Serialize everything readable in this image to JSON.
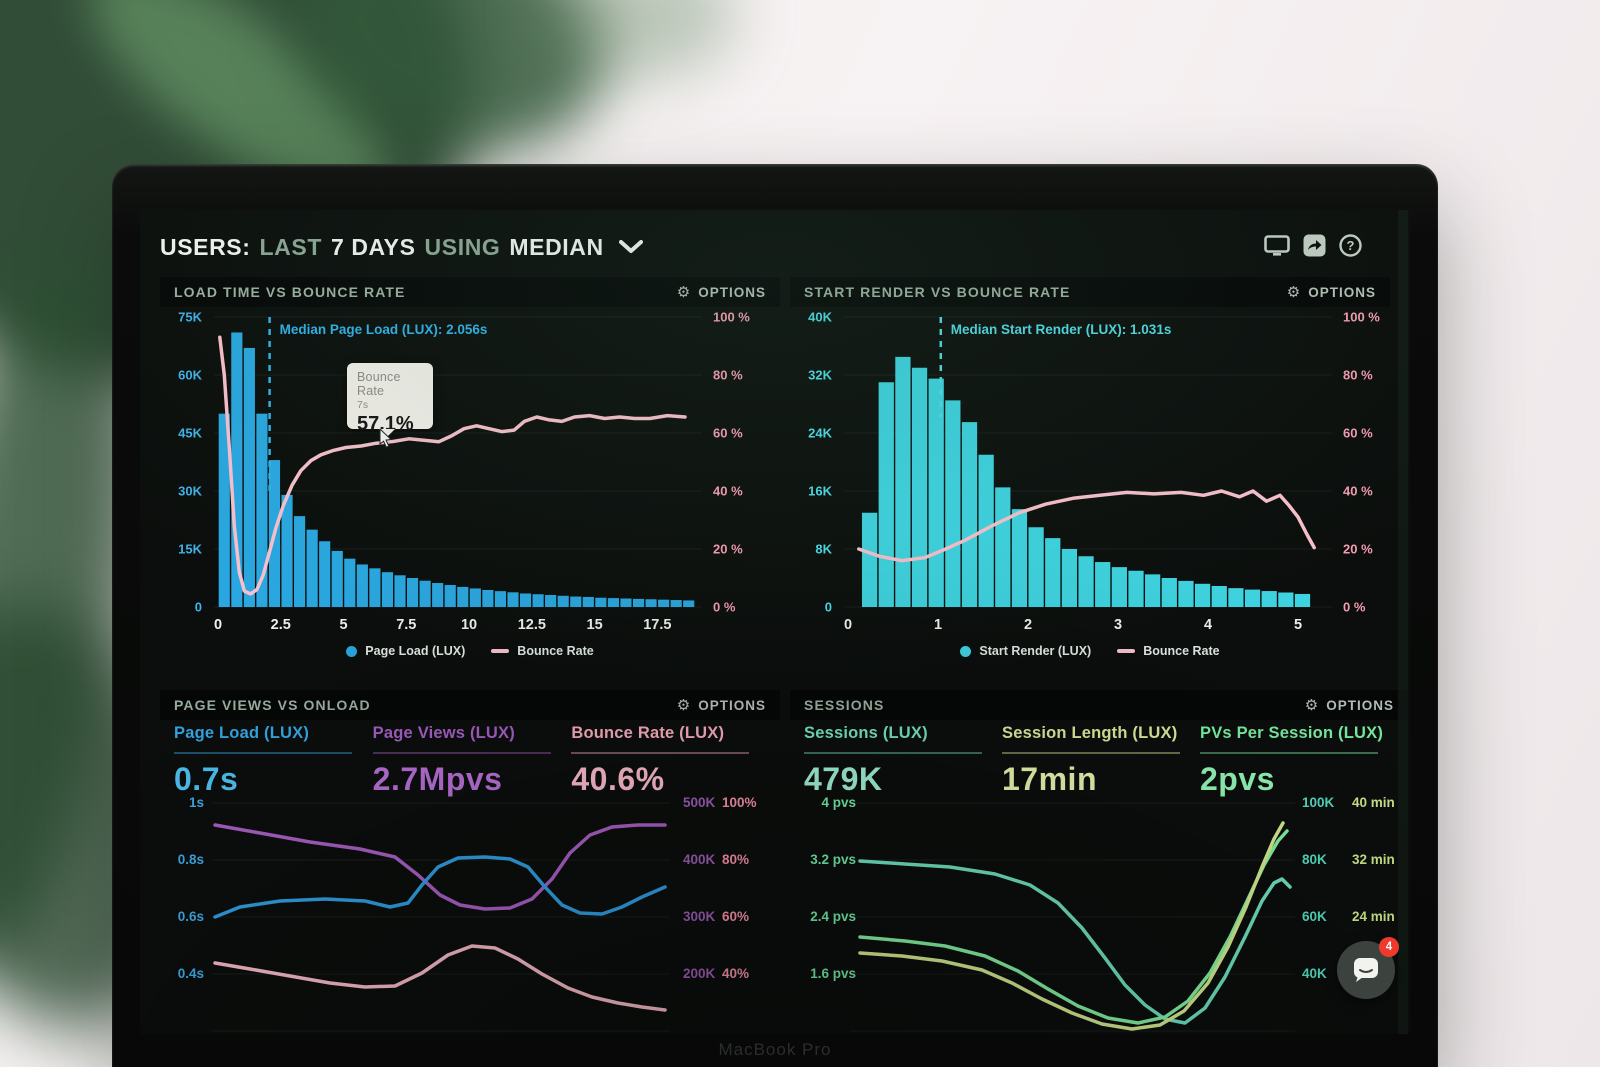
{
  "ui": {
    "header": {
      "users": "USERS:",
      "last": "LAST",
      "days": "7 DAYS",
      "using": "USING",
      "median": "MEDIAN"
    },
    "options_label": "OPTIONS",
    "chat_badge": "4",
    "device_label": "MacBook Pro",
    "colors": {
      "accent_blue": "#2fa9e1",
      "accent_cyan": "#47d8e3",
      "accent_pink": "#f6b9c5",
      "accent_purple": "#a963c6",
      "accent_teal": "#7ee8c6",
      "accent_yellowgreen": "#dff0a0",
      "accent_green": "#84f2a3",
      "sage": "#9cb0a2",
      "badge_red": "#ee392c"
    }
  },
  "chart_data": [
    {
      "type": "bar+line",
      "title": "LOAD TIME VS BOUNCE RATE",
      "x_range": [
        0,
        19
      ],
      "x_ticks": [
        0,
        2.5,
        5,
        7.5,
        10,
        12.5,
        15,
        17.5
      ],
      "y_left_ticks": [
        "75K",
        "60K",
        "45K",
        "30K",
        "15K",
        "0"
      ],
      "y_left_max_k": 75,
      "y_right_ticks": [
        "100 %",
        "80 %",
        "60 %",
        "40 %",
        "20 %",
        "0 %"
      ],
      "bar_series": "Page Load (LUX)",
      "line_series": "Bounce Rate",
      "bar_color": "#2aa7e0",
      "line_color": "#f8c0cc",
      "left_axis_color": "#3fb3e8",
      "right_axis_color": "#f59cb2",
      "bars": {
        "start_s": 0.25,
        "step_s": 0.5,
        "values_k": [
          50,
          71,
          67,
          50,
          38,
          29,
          23.5,
          20,
          17,
          14.5,
          12.5,
          11,
          10,
          9,
          8.2,
          7.5,
          6.8,
          6.2,
          5.7,
          5.2,
          4.8,
          4.4,
          4.1,
          3.8,
          3.5,
          3.3,
          3.1,
          2.9,
          2.7,
          2.6,
          2.4,
          2.3,
          2.2,
          2.1,
          2.0,
          1.9,
          1.8,
          1.7
        ]
      },
      "bounce_line_pct": [
        [
          0.07,
          93
        ],
        [
          0.25,
          80
        ],
        [
          0.45,
          55
        ],
        [
          0.65,
          28
        ],
        [
          0.85,
          12
        ],
        [
          1.05,
          5.5
        ],
        [
          1.3,
          4.5
        ],
        [
          1.55,
          6
        ],
        [
          1.8,
          11
        ],
        [
          2.05,
          19
        ],
        [
          2.3,
          27
        ],
        [
          2.6,
          35
        ],
        [
          2.95,
          42
        ],
        [
          3.3,
          47
        ],
        [
          3.7,
          50.5
        ],
        [
          4.1,
          52.5
        ],
        [
          4.6,
          54
        ],
        [
          5.1,
          55
        ],
        [
          5.7,
          55.5
        ],
        [
          6.3,
          56.5
        ],
        [
          7,
          57.1
        ],
        [
          7.6,
          58
        ],
        [
          8.2,
          57.5
        ],
        [
          8.8,
          57
        ],
        [
          9.3,
          59
        ],
        [
          9.8,
          61.5
        ],
        [
          10.3,
          62.5
        ],
        [
          10.8,
          61.5
        ],
        [
          11.3,
          60.5
        ],
        [
          11.8,
          61
        ],
        [
          12.2,
          64
        ],
        [
          12.7,
          65.5
        ],
        [
          13.2,
          64.5
        ],
        [
          13.7,
          64
        ],
        [
          14.2,
          65.5
        ],
        [
          14.8,
          66
        ],
        [
          15.4,
          65
        ],
        [
          16,
          65.5
        ],
        [
          16.6,
          65
        ],
        [
          17.2,
          65
        ],
        [
          17.9,
          66
        ],
        [
          18.6,
          65.5
        ]
      ],
      "median": {
        "label": "Median Page Load (LUX): 2.056s",
        "x_s": 2.056,
        "color": "#2fb3ea",
        "line_len": 175
      },
      "tooltip": {
        "title": "Bounce Rate",
        "x_label": "7s",
        "value": "57.1%"
      }
    },
    {
      "type": "bar+line",
      "title": "START RENDER VS BOUNCE RATE",
      "x_range": [
        0,
        5.3
      ],
      "x_ticks": [
        0,
        1,
        2,
        3,
        4,
        5
      ],
      "y_left_ticks": [
        "40K",
        "32K",
        "24K",
        "16K",
        "8K",
        "0"
      ],
      "y_left_max_k": 40,
      "y_right_ticks": [
        "100 %",
        "80 %",
        "60 %",
        "40 %",
        "20 %",
        "0 %"
      ],
      "bar_series": "Start Render (LUX)",
      "line_series": "Bounce Rate",
      "bar_color": "#3ed3e0",
      "line_color": "#f8c0cc",
      "left_axis_color": "#4cdce8",
      "right_axis_color": "#f59cb2",
      "bars": {
        "start_s": 0.24,
        "step_s": 0.185,
        "values_k": [
          13,
          31,
          34.5,
          33,
          31.5,
          28.5,
          25.5,
          21,
          16.5,
          13.5,
          11,
          9.5,
          8,
          7,
          6.2,
          5.5,
          5,
          4.5,
          4,
          3.6,
          3.2,
          2.9,
          2.6,
          2.4,
          2.2,
          2.0,
          1.8
        ]
      },
      "bounce_line_pct": [
        [
          0.12,
          20
        ],
        [
          0.35,
          17.5
        ],
        [
          0.6,
          16
        ],
        [
          0.85,
          17
        ],
        [
          1.05,
          19.5
        ],
        [
          1.3,
          23
        ],
        [
          1.6,
          28
        ],
        [
          1.9,
          32.5
        ],
        [
          2.2,
          35.5
        ],
        [
          2.5,
          37.5
        ],
        [
          2.8,
          38.5
        ],
        [
          3.1,
          39.5
        ],
        [
          3.4,
          39
        ],
        [
          3.7,
          39.5
        ],
        [
          3.95,
          38.5
        ],
        [
          4.15,
          40
        ],
        [
          4.35,
          38
        ],
        [
          4.5,
          40
        ],
        [
          4.65,
          36.5
        ],
        [
          4.8,
          38.5
        ],
        [
          4.9,
          35
        ],
        [
          5.0,
          31
        ],
        [
          5.1,
          25
        ],
        [
          5.18,
          20.5
        ]
      ],
      "median": {
        "label": "Median Start Render (LUX): 1.031s",
        "x_s": 1.031,
        "color": "#4fdbe6",
        "line_len": 100
      }
    },
    {
      "type": "line",
      "title": "PAGE VIEWS VS ONLOAD",
      "metrics": [
        {
          "label": "Page Load (LUX)",
          "value": "0.7s",
          "label_color": "#35a7e4",
          "value_color": "#4fc0f0"
        },
        {
          "label": "Page Views (LUX)",
          "value": "2.7Mpvs",
          "label_color": "#a55ec4",
          "value_color": "#b76fd6"
        },
        {
          "label": "Bounce Rate (LUX)",
          "value": "40.6%",
          "label_color": "#f6a9bd",
          "value_color": "#f9b9ca"
        }
      ],
      "y_left_ticks": [
        "1s",
        "0.8s",
        "0.6s",
        "0.4s"
      ],
      "left_axis_color": "#3fa9e6",
      "y_right_cols": [
        {
          "ticks": [
            "500K",
            "400K",
            "300K",
            "200K"
          ],
          "color": "#9b5cb4"
        },
        {
          "ticks": [
            "100%",
            "80%",
            "60%",
            "40%"
          ],
          "color": "#f590ab"
        }
      ],
      "points_units": "svg-px",
      "series": [
        {
          "name": "Page Views (LUX)",
          "color": "#a75fc3",
          "points": [
            [
              55,
              30
            ],
            [
              100,
              38
            ],
            [
              150,
              47
            ],
            [
              200,
              54
            ],
            [
              235,
              62
            ],
            [
              258,
              80
            ],
            [
              280,
              100
            ],
            [
              300,
              110
            ],
            [
              325,
              114
            ],
            [
              350,
              113
            ],
            [
              372,
              104
            ],
            [
              392,
              84
            ],
            [
              410,
              58
            ],
            [
              430,
              40
            ],
            [
              452,
              32
            ],
            [
              478,
              30
            ],
            [
              505,
              30
            ]
          ]
        },
        {
          "name": "Page Load (LUX)",
          "color": "#2f9de0",
          "points": [
            [
              55,
              122
            ],
            [
              80,
              112
            ],
            [
              120,
              106
            ],
            [
              165,
              104
            ],
            [
              205,
              106
            ],
            [
              230,
              112
            ],
            [
              248,
              108
            ],
            [
              262,
              90
            ],
            [
              278,
              72
            ],
            [
              298,
              63
            ],
            [
              325,
              62
            ],
            [
              350,
              64
            ],
            [
              368,
              72
            ],
            [
              385,
              92
            ],
            [
              402,
              110
            ],
            [
              420,
              118
            ],
            [
              442,
              119
            ],
            [
              462,
              112
            ],
            [
              482,
              102
            ],
            [
              505,
              92
            ]
          ]
        },
        {
          "name": "Bounce Rate (LUX)",
          "color": "#f5b9c6",
          "points": [
            [
              55,
              168
            ],
            [
              90,
              174
            ],
            [
              130,
              181
            ],
            [
              170,
              188
            ],
            [
              205,
              192
            ],
            [
              235,
              191
            ],
            [
              262,
              178
            ],
            [
              288,
              160
            ],
            [
              312,
              151
            ],
            [
              335,
              153
            ],
            [
              358,
              164
            ],
            [
              382,
              179
            ],
            [
              408,
              193
            ],
            [
              432,
              202
            ],
            [
              458,
              208
            ],
            [
              482,
              212
            ],
            [
              505,
              215
            ]
          ]
        }
      ]
    },
    {
      "type": "line",
      "title": "SESSIONS",
      "metrics": [
        {
          "label": "Sessions (LUX)",
          "value": "479K",
          "label_color": "#74e3bd",
          "value_color": "#9ff0d4"
        },
        {
          "label": "Session Length (LUX)",
          "value": "17min",
          "label_color": "#d9eb9b",
          "value_color": "#e7f5ae"
        },
        {
          "label": "PVs Per Session (LUX)",
          "value": "2pvs",
          "label_color": "#79efa2",
          "value_color": "#93f7b6"
        }
      ],
      "y_left_ticks": [
        "4 pvs",
        "3.2 pvs",
        "2.4 pvs",
        "1.6 pvs"
      ],
      "left_axis_color": "#72e9a8",
      "y_right_cols": [
        {
          "ticks": [
            "100K",
            "80K",
            "60K",
            "40K"
          ],
          "color": "#55dec2"
        },
        {
          "ticks": [
            "40 min",
            "32 min",
            "24 min"
          ],
          "color": "#cfe98a"
        }
      ],
      "points_units": "svg-px",
      "series": [
        {
          "name": "Sessions (LUX)",
          "color": "#6fe2c0",
          "points": [
            [
              70,
              66
            ],
            [
              115,
              69
            ],
            [
              160,
              72
            ],
            [
              205,
              79
            ],
            [
              240,
              90
            ],
            [
              268,
              108
            ],
            [
              292,
              133
            ],
            [
              315,
              163
            ],
            [
              335,
              190
            ],
            [
              355,
              210
            ],
            [
              375,
              224
            ],
            [
              395,
              228
            ],
            [
              415,
              213
            ],
            [
              435,
              182
            ],
            [
              455,
              142
            ],
            [
              472,
              106
            ],
            [
              484,
              88
            ],
            [
              492,
              84
            ],
            [
              500,
              92
            ]
          ]
        },
        {
          "name": "PVs Per Session (LUX)",
          "color": "#84f2a3",
          "points": [
            [
              70,
              142
            ],
            [
              115,
              146
            ],
            [
              155,
              151
            ],
            [
              195,
              161
            ],
            [
              228,
              176
            ],
            [
              258,
              194
            ],
            [
              288,
              211
            ],
            [
              318,
              223
            ],
            [
              348,
              228
            ],
            [
              375,
              222
            ],
            [
              398,
              206
            ],
            [
              420,
              178
            ],
            [
              440,
              142
            ],
            [
              458,
              104
            ],
            [
              474,
              70
            ],
            [
              488,
              46
            ],
            [
              497,
              36
            ]
          ]
        },
        {
          "name": "Session Length (LUX)",
          "color": "#d5ec90",
          "points": [
            [
              70,
              158
            ],
            [
              112,
              161
            ],
            [
              152,
              166
            ],
            [
              192,
              175
            ],
            [
              222,
              188
            ],
            [
              252,
              204
            ],
            [
              282,
              218
            ],
            [
              312,
              229
            ],
            [
              342,
              234
            ],
            [
              370,
              230
            ],
            [
              394,
              216
            ],
            [
              418,
              188
            ],
            [
              438,
              152
            ],
            [
              456,
              112
            ],
            [
              472,
              72
            ],
            [
              484,
              44
            ],
            [
              493,
              28
            ]
          ]
        }
      ]
    }
  ]
}
